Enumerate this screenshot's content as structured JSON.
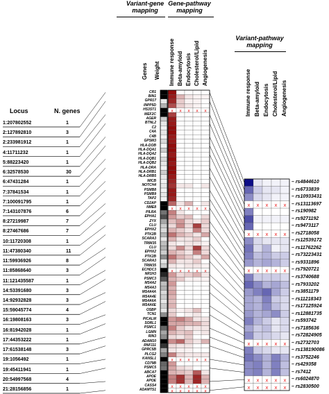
{
  "headers": {
    "variant_gene": [
      "Variant-gene",
      "mapping"
    ],
    "gene_pathway": [
      "Gene-pathway",
      "mapping"
    ],
    "variant_pathway": [
      "Variant-pathway",
      "mapping"
    ]
  },
  "column_labels": {
    "genes": "Genes",
    "weight": "Weight",
    "pathways": [
      "Immune response",
      "Beta-amyloid",
      "Endocytosis",
      "Cholesterol/Lipid",
      "Angiogenesis"
    ]
  },
  "locus_header": {
    "locus": "Locus",
    "n_genes": "N. genes"
  },
  "loci": [
    {
      "locus": "1:207802552",
      "n": "1"
    },
    {
      "locus": "2:127892810",
      "n": "3"
    },
    {
      "locus": "2:233981912",
      "n": "1"
    },
    {
      "locus": "4:11711232",
      "n": "1"
    },
    {
      "locus": "5:88223420",
      "n": "1"
    },
    {
      "locus": "6:32578530",
      "n": "30"
    },
    {
      "locus": "6:47431284",
      "n": "1"
    },
    {
      "locus": "7:37841534",
      "n": "1"
    },
    {
      "locus": "7:100091795",
      "n": "1"
    },
    {
      "locus": "7:143107876",
      "n": "6"
    },
    {
      "locus": "8:27219987",
      "n": "7"
    },
    {
      "locus": "8:27467686",
      "n": "7"
    },
    {
      "locus": "10:11720308",
      "n": "1"
    },
    {
      "locus": "11:47380340",
      "n": "11"
    },
    {
      "locus": "11:59936926",
      "n": "8"
    },
    {
      "locus": "11:85868640",
      "n": "3"
    },
    {
      "locus": "11:121435587",
      "n": "1"
    },
    {
      "locus": "14:53391680",
      "n": "3"
    },
    {
      "locus": "14:92932828",
      "n": "3"
    },
    {
      "locus": "15:59045774",
      "n": "4"
    },
    {
      "locus": "16:19808163",
      "n": "3"
    },
    {
      "locus": "16:81942028",
      "n": "1"
    },
    {
      "locus": "17:44353222",
      "n": "1"
    },
    {
      "locus": "17:61538148",
      "n": "3"
    },
    {
      "locus": "19:1056492",
      "n": "1"
    },
    {
      "locus": "19:45411941",
      "n": "1"
    },
    {
      "locus": "20:54997568",
      "n": "4"
    },
    {
      "locus": "21:28156856",
      "n": "1"
    }
  ],
  "genes": [
    "CR1",
    "BIN1",
    "GPR17",
    "INPP5D",
    "HS3ST1",
    "MEF2C",
    "AGER",
    "BTNL2",
    "C2",
    "C4A",
    "C4B",
    "GPSM3",
    "HLA-DOB",
    "HLA-DQA1",
    "HLA-DQA2",
    "HLA-DQB1",
    "HLA-DQB2",
    "HLA-DRA",
    "HLA-DRB1",
    "HLA-DRB5",
    "MICB",
    "NOTCH4",
    "PSMB8",
    "PSMB9",
    "TAP2",
    "CD2AP",
    "NME8",
    "PILRA",
    "EPHA1",
    "ZYX",
    "CLU",
    "EPHX2",
    "PTK2B",
    "SCARA3",
    "TRIM35",
    "CLU",
    "EPHX2",
    "PTK2B",
    "SCARA3",
    "TRIM35",
    "ECHDC3",
    "NR1H3",
    "PSMC3",
    "MS4A2",
    "MS4A3",
    "MS4A4A",
    "MS4A4E",
    "MS4A6A",
    "MS4A6E",
    "OSBP",
    "TCN1",
    "PICALM",
    "SORL1",
    "PSMC1",
    "LGMN",
    "RIN3",
    "ADAM10",
    "RNF111",
    "GPRC5B",
    "PLCG2",
    "KANSL1",
    "CD79B",
    "PSMC5",
    "ABCA7",
    "APOE",
    "APOE",
    "CASS4",
    "ADAMTS1"
  ],
  "rsids": [
    "rs4844610",
    "rs6733839",
    "rs10933431",
    "rs13113697",
    "rs190982",
    "rs9271192",
    "rs9473117",
    "rs2718058",
    "rs12539172",
    "rs11762262",
    "rs73223431",
    "rs9331896",
    "rs7920721",
    "rs3740688",
    "rs7933202",
    "rs3851179",
    "rs11218343",
    "rs17125924",
    "rs12881735",
    "rs593742",
    "rs7185636",
    "rs72824905",
    "rs2732703",
    "rs138190086",
    "rs3752246",
    "rs429358",
    "rs7412",
    "rs6024870",
    "rs2830500"
  ],
  "gene_weights": [
    1,
    1,
    0.1,
    0.3,
    1,
    1,
    0.2,
    0.1,
    0.05,
    0.1,
    0.05,
    0.15,
    0.05,
    0.2,
    0.05,
    0.15,
    0.1,
    0.05,
    0.2,
    0.1,
    0.05,
    0.1,
    0.05,
    0.1,
    0.05,
    1,
    1,
    0.55,
    0.7,
    0.35,
    0.2,
    0.15,
    0.3,
    0.1,
    0.25,
    0.3,
    0.2,
    0.45,
    0.1,
    0.2,
    1,
    0.85,
    0.65,
    0.25,
    0.3,
    0.15,
    0.2,
    0.1,
    0.2,
    0.1,
    0.45,
    1,
    1,
    0.6,
    0.35,
    0.45,
    1,
    0.8,
    0.35,
    0.5,
    1,
    0.6,
    0.55,
    1,
    1,
    1,
    1,
    1
  ],
  "gene_pathway": [
    [
      0.95,
      0,
      0,
      0,
      0
    ],
    [
      0.9,
      0.3,
      0.1,
      0.05,
      0.05
    ],
    [
      0.85,
      0.2,
      0.05,
      0.05,
      0
    ],
    [
      0.7,
      0.2,
      0.1,
      0.05,
      0
    ],
    [
      -1,
      -1,
      -1,
      -1,
      -1
    ],
    [
      0.75,
      0,
      0,
      0,
      0
    ],
    [
      0.9,
      0,
      0,
      0,
      0
    ],
    [
      0.9,
      0,
      0,
      0,
      0
    ],
    [
      0.95,
      0,
      0,
      0,
      0
    ],
    [
      0.95,
      0,
      0,
      0,
      0
    ],
    [
      0.9,
      0,
      0,
      0,
      0
    ],
    [
      0.9,
      0,
      0,
      0,
      0
    ],
    [
      0.95,
      0,
      0,
      0,
      0
    ],
    [
      0.95,
      0,
      0,
      0,
      0
    ],
    [
      0.9,
      0,
      0,
      0,
      0
    ],
    [
      0.95,
      0,
      0,
      0,
      0
    ],
    [
      0.9,
      0,
      0,
      0,
      0
    ],
    [
      0.95,
      0,
      0,
      0,
      0
    ],
    [
      0.95,
      0,
      0,
      0,
      0
    ],
    [
      0.9,
      0,
      0,
      0,
      0
    ],
    [
      0.85,
      0,
      0,
      0,
      0
    ],
    [
      0.8,
      0.1,
      0.1,
      0,
      0.1
    ],
    [
      0.9,
      0,
      0,
      0,
      0
    ],
    [
      0.9,
      0,
      0,
      0,
      0
    ],
    [
      0.85,
      0,
      0,
      0,
      0
    ],
    [
      0.6,
      0.1,
      0.3,
      0,
      0.1
    ],
    [
      -1,
      -1,
      -1,
      -1,
      -1
    ],
    [
      0.5,
      0.1,
      0,
      0,
      0
    ],
    [
      0.4,
      0.2,
      0.25,
      0,
      0.15
    ],
    [
      0.25,
      0.4,
      0.15,
      0.1,
      0.2
    ],
    [
      0.15,
      0.45,
      0.15,
      0.75,
      0.15
    ],
    [
      0.3,
      0.2,
      0.1,
      0.5,
      0.15
    ],
    [
      0.55,
      0.3,
      0.2,
      0.1,
      0.35
    ],
    [
      0.3,
      0.1,
      0.1,
      0.2,
      0
    ],
    [
      0.1,
      0.05,
      0.1,
      0.1,
      0.05
    ],
    [
      0.15,
      0.45,
      0.15,
      0.75,
      0.15
    ],
    [
      0.3,
      0.2,
      0.1,
      0.5,
      0.15
    ],
    [
      0.55,
      0.3,
      0.2,
      0.1,
      0.35
    ],
    [
      0.3,
      0.1,
      0.1,
      0.2,
      0
    ],
    [
      0.1,
      0.05,
      0.1,
      0.1,
      0.05
    ],
    [
      -1,
      -1,
      -1,
      -1,
      -1
    ],
    [
      0.4,
      0.15,
      0.2,
      0.3,
      0.1
    ],
    [
      0.3,
      0.2,
      0.05,
      0.05,
      0.05
    ],
    [
      0.4,
      0,
      0,
      0,
      0
    ],
    [
      0.3,
      0,
      0,
      0,
      0
    ],
    [
      0.35,
      0,
      0,
      0,
      0
    ],
    [
      0.3,
      0,
      0,
      0,
      0
    ],
    [
      0.25,
      0,
      0,
      0,
      0
    ],
    [
      0.3,
      0,
      0,
      0,
      0
    ],
    [
      0.15,
      0.05,
      0.1,
      0.25,
      0
    ],
    [
      0.2,
      0,
      0.05,
      0.1,
      0
    ],
    [
      0.4,
      0.5,
      0.35,
      0.1,
      0.1
    ],
    [
      0.35,
      0.35,
      0.3,
      0.3,
      0.15
    ],
    [
      0.5,
      0.2,
      0.1,
      0.1,
      0.1
    ],
    [
      0.3,
      0.2,
      0.25,
      0.05,
      0.1
    ],
    [
      0.15,
      0.1,
      0.2,
      0,
      0
    ],
    [
      0.45,
      0.6,
      0.2,
      0.1,
      0.3
    ],
    [
      0.15,
      0.1,
      0.1,
      0,
      0
    ],
    [
      0.1,
      0.05,
      0.05,
      0,
      0
    ],
    [
      0.5,
      0.15,
      0.1,
      0.1,
      0.1
    ],
    [
      -1,
      -1,
      -1,
      -1,
      -1
    ],
    [
      0.4,
      0,
      0,
      0,
      0
    ],
    [
      0.35,
      0.15,
      0.1,
      0,
      0
    ],
    [
      0.3,
      0.25,
      0.2,
      0.65,
      0.1
    ],
    [
      0.5,
      0.8,
      0.3,
      0.85,
      0.3
    ],
    [
      0.5,
      0.8,
      0.3,
      0.85,
      0.3
    ],
    [
      -1,
      -1,
      -1,
      -1,
      -1
    ],
    [
      -1,
      -1,
      -1,
      -1,
      -1
    ]
  ],
  "variant_pathway": [
    [
      0.95,
      0.1,
      0.05,
      0.05,
      0.05
    ],
    [
      0.6,
      0.2,
      0.1,
      0.1,
      0.05
    ],
    [
      0.45,
      0.15,
      0.1,
      0.05,
      0.05
    ],
    [
      -1,
      -1,
      -1,
      -1,
      -1
    ],
    [
      0.5,
      0,
      0,
      0,
      0
    ],
    [
      0.7,
      0.05,
      0.05,
      0.05,
      0.05
    ],
    [
      0.6,
      0,
      0,
      0,
      0
    ],
    [
      -1,
      -1,
      -1,
      -1,
      -1
    ],
    [
      0.45,
      0.15,
      0.1,
      0.1,
      0.1
    ],
    [
      0.55,
      0.15,
      0.3,
      0.05,
      0.1
    ],
    [
      0.5,
      0.25,
      0.3,
      0.2,
      0.2
    ],
    [
      0.4,
      0.3,
      0.35,
      0.3,
      0.2
    ],
    [
      -1,
      -1,
      -1,
      -1,
      -1
    ],
    [
      0.5,
      0.2,
      0.2,
      0.2,
      0.15
    ],
    [
      0.6,
      0.45,
      0.3,
      0.35,
      0.25
    ],
    [
      0.4,
      0.5,
      0.6,
      0.35,
      0.2
    ],
    [
      0.35,
      0.3,
      0.5,
      0.2,
      0.15
    ],
    [
      0.35,
      0.3,
      0.45,
      0.25,
      0.15
    ],
    [
      0.4,
      0.3,
      0.35,
      0.45,
      0.2
    ],
    [
      0.5,
      0.3,
      0.2,
      0.1,
      0.15
    ],
    [
      0.35,
      0.2,
      0.25,
      0.1,
      0.15
    ],
    [
      0.45,
      0.2,
      0.2,
      0.15,
      0.1
    ],
    [
      -1,
      -1,
      -1,
      -1,
      -1
    ],
    [
      0.5,
      0.2,
      0.15,
      0.1,
      0.1
    ],
    [
      0.55,
      0.45,
      0.3,
      0.5,
      0.3
    ],
    [
      0.45,
      0.5,
      0.3,
      0.5,
      0.25
    ],
    [
      0.45,
      0.5,
      0.3,
      0.5,
      0.25
    ],
    [
      -1,
      -1,
      -1,
      -1,
      -1
    ],
    [
      -1,
      -1,
      -1,
      -1,
      -1
    ]
  ],
  "colors": {
    "immune_red": "#8b0000",
    "pathway_blue": "#000080",
    "cross": "#ee2222",
    "weight_max": "#000000"
  }
}
